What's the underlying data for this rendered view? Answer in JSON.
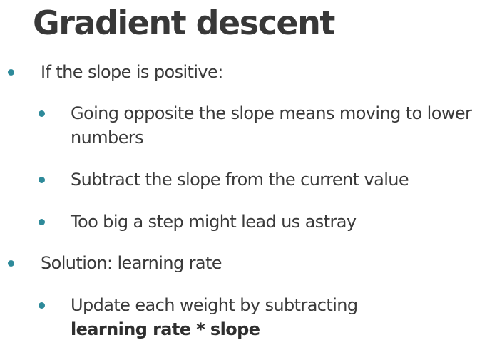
{
  "slide": {
    "title": "Gradient descent",
    "bullets": [
      {
        "text": "If the slope is positive:",
        "children": [
          {
            "line1": "Going opposite the slope means moving to lower",
            "line2": "numbers"
          },
          {
            "text": "Subtract the slope from the current value"
          },
          {
            "text": "Too big a step might lead us astray"
          }
        ]
      },
      {
        "text": "Solution: learning rate",
        "children": [
          {
            "line1": "Update each weight by subtracting",
            "line2_bold": "learning rate * slope"
          }
        ]
      }
    ]
  },
  "colors": {
    "bullet": "#2e8a9a",
    "text": "#3a3a3a",
    "title": "#383838"
  }
}
